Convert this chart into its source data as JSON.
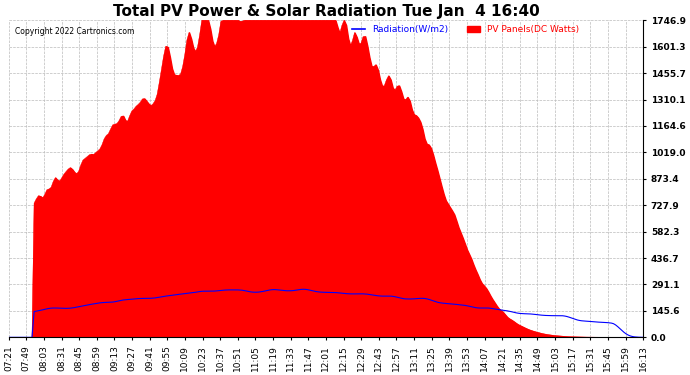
{
  "title": "Total PV Power & Solar Radiation Tue Jan  4 16:40",
  "copyright": "Copyright 2022 Cartronics.com",
  "legend_radiation": "Radiation(W/m2)",
  "legend_pv": "PV Panels(DC Watts)",
  "legend_radiation_color": "blue",
  "legend_pv_color": "red",
  "ymax": 1746.9,
  "ymin": 0.0,
  "yticks": [
    0.0,
    145.6,
    291.1,
    436.7,
    582.3,
    727.9,
    873.4,
    1019.0,
    1164.6,
    1310.1,
    1455.7,
    1601.3,
    1746.9
  ],
  "background_color": "#ffffff",
  "fill_color": "red",
  "line_color": "blue",
  "grid_color": "#bbbbbb",
  "title_fontsize": 11,
  "tick_fontsize": 6.5
}
